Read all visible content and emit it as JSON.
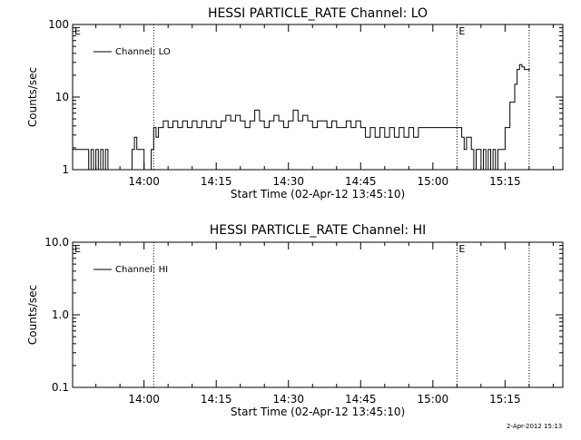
{
  "footer": {
    "timestamp": "2-Apr-2012 15:13"
  },
  "chart_data": [
    {
      "type": "line",
      "title": "HESSI PARTICLE_RATE Channel: LO",
      "xlabel": "Start Time (02-Apr-12 13:45:10)",
      "ylabel": "Counts/sec",
      "y_scale": "log",
      "ylim": [
        1,
        100
      ],
      "y_ticks": [
        {
          "value": 1,
          "label": "1"
        },
        {
          "value": 10,
          "label": "10"
        },
        {
          "value": 100,
          "label": "100"
        }
      ],
      "xlim": [
        "13:45:10",
        "15:27:00"
      ],
      "x_ticks": [
        "14:00",
        "14:15",
        "14:30",
        "14:45",
        "15:00",
        "15:15"
      ],
      "vlines": [
        "14:02:00",
        "15:05:00",
        "15:20:00"
      ],
      "markers": [
        {
          "label": "E",
          "at": "13:45:10"
        },
        {
          "label": "E",
          "at": "15:05:00"
        }
      ],
      "legend": {
        "position": "top-left",
        "entries": [
          "Channel: LO"
        ]
      },
      "series": [
        {
          "name": "Channel: LO",
          "x": [
            "13:45:10",
            "13:48:00",
            "13:48:30",
            "13:49:00",
            "13:49:30",
            "13:50:00",
            "13:50:30",
            "13:51:00",
            "13:51:30",
            "13:52:00",
            "13:52:30",
            "13:53:00",
            "13:57:00",
            "13:57:30",
            "13:58:00",
            "13:58:30",
            "13:59:00",
            "14:00:00",
            "14:01:00",
            "14:01:30",
            "14:02:00",
            "14:02:30",
            "14:03:00",
            "14:03:30",
            "14:04:00",
            "14:05:00",
            "14:06:00",
            "14:07:00",
            "14:08:00",
            "14:09:00",
            "14:10:00",
            "14:11:00",
            "14:12:00",
            "14:13:00",
            "14:14:00",
            "14:15:00",
            "14:16:00",
            "14:17:00",
            "14:18:00",
            "14:19:00",
            "14:20:00",
            "14:21:00",
            "14:22:00",
            "14:23:00",
            "14:24:00",
            "14:25:00",
            "14:26:00",
            "14:27:00",
            "14:28:00",
            "14:29:00",
            "14:30:00",
            "14:31:00",
            "14:32:00",
            "14:33:00",
            "14:34:00",
            "14:35:00",
            "14:36:00",
            "14:37:00",
            "14:38:00",
            "14:39:00",
            "14:40:00",
            "14:41:00",
            "14:42:00",
            "14:43:00",
            "14:44:00",
            "14:45:00",
            "14:46:00",
            "14:47:00",
            "14:48:00",
            "14:49:00",
            "14:50:00",
            "14:51:00",
            "14:52:00",
            "14:53:00",
            "14:54:00",
            "14:55:00",
            "14:56:00",
            "14:57:00",
            "14:58:00",
            "14:59:00",
            "15:00:00",
            "15:01:00",
            "15:02:00",
            "15:03:00",
            "15:04:00",
            "15:05:00",
            "15:06:00",
            "15:06:30",
            "15:07:00",
            "15:08:00",
            "15:08:30",
            "15:09:00",
            "15:10:00",
            "15:10:30",
            "15:11:00",
            "15:11:30",
            "15:12:00",
            "15:12:30",
            "15:13:00",
            "15:13:30",
            "15:14:00",
            "15:14:30",
            "15:15:00",
            "15:16:00",
            "15:17:00",
            "15:17:30",
            "15:18:00",
            "15:18:30",
            "15:19:00",
            "15:20:00"
          ],
          "y": [
            1.9,
            1.9,
            1.0,
            1.9,
            1.0,
            1.9,
            1.0,
            1.9,
            1.0,
            1.9,
            1.0,
            1.0,
            1.0,
            1.9,
            2.8,
            1.9,
            1.9,
            1.0,
            1.0,
            1.9,
            3.8,
            2.8,
            3.8,
            3.8,
            4.7,
            3.8,
            4.7,
            3.8,
            4.7,
            3.8,
            4.7,
            3.8,
            4.7,
            3.8,
            4.7,
            3.8,
            4.7,
            5.6,
            4.7,
            5.6,
            4.7,
            3.8,
            4.7,
            6.6,
            4.7,
            3.8,
            4.7,
            5.6,
            4.7,
            3.8,
            4.7,
            6.6,
            4.7,
            5.6,
            4.7,
            3.8,
            4.7,
            4.7,
            3.8,
            4.7,
            3.8,
            3.8,
            4.7,
            3.8,
            4.7,
            3.8,
            2.8,
            3.8,
            2.8,
            3.8,
            2.8,
            3.8,
            2.8,
            3.8,
            2.8,
            3.8,
            2.8,
            3.8,
            3.8,
            3.8,
            3.8,
            3.8,
            3.8,
            3.8,
            3.8,
            3.8,
            2.8,
            1.9,
            2.8,
            1.9,
            1.0,
            1.9,
            1.0,
            1.9,
            1.0,
            1.9,
            1.0,
            1.9,
            1.0,
            1.9,
            1.9,
            1.9,
            3.8,
            8.5,
            15.0,
            24.0,
            28.0,
            26.0,
            24.0,
            23.0
          ]
        }
      ]
    },
    {
      "type": "line",
      "title": "HESSI PARTICLE_RATE Channel: HI",
      "xlabel": "Start Time (02-Apr-12 13:45:10)",
      "ylabel": "Counts/sec",
      "y_scale": "log",
      "ylim": [
        0.1,
        10.0
      ],
      "y_ticks": [
        {
          "value": 0.1,
          "label": "0.1"
        },
        {
          "value": 1.0,
          "label": "1.0"
        },
        {
          "value": 10.0,
          "label": "10.0"
        }
      ],
      "xlim": [
        "13:45:10",
        "15:27:00"
      ],
      "x_ticks": [
        "14:00",
        "14:15",
        "14:30",
        "14:45",
        "15:00",
        "15:15"
      ],
      "vlines": [
        "14:02:00",
        "15:05:00",
        "15:20:00"
      ],
      "markers": [
        {
          "label": "E",
          "at": "13:45:10"
        },
        {
          "label": "E",
          "at": "15:05:00"
        }
      ],
      "legend": {
        "position": "top-left",
        "entries": [
          "Channel: HI"
        ]
      },
      "series": [
        {
          "name": "Channel: HI",
          "x": [],
          "y": []
        }
      ]
    }
  ]
}
